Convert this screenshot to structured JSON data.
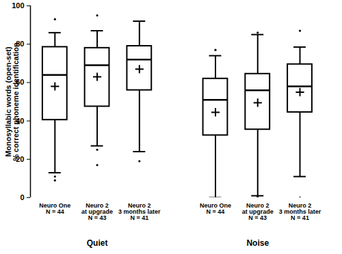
{
  "chart_data": {
    "type": "boxplot",
    "y_label": "Monosyllabic words (open-set)\n% correct phoneme identification",
    "categories": [
      "Neuro One\nN = 44",
      "Neuro 2\nat upgrade\nN = 43",
      "Neuro 2\n3 months later\nN = 41",
      "Neuro One\nN = 44",
      "Neuro 2\nat upgrade\nN = 43",
      "Neuro 2\n3 months later\nN = 41"
    ],
    "groups": [
      "Quiet",
      "Quiet",
      "Quiet",
      "Noise",
      "Noise",
      "Noise"
    ],
    "whisker_low": [
      13,
      27,
      24,
      0,
      1,
      11
    ],
    "q1": [
      40.5,
      47.5,
      56,
      32.5,
      35.5,
      44.5
    ],
    "median": [
      64,
      69,
      72,
      51,
      56,
      58
    ],
    "q3": [
      78.5,
      78,
      79,
      62,
      64.5,
      69.5
    ],
    "whisker_high": [
      86,
      87,
      92,
      74,
      85,
      78.5
    ],
    "mean": [
      58,
      63,
      67,
      44.5,
      49.5,
      55
    ],
    "outliers": [
      [
        93,
        11,
        9
      ],
      [
        95,
        25,
        17
      ],
      [
        19
      ],
      [
        77
      ],
      [
        86,
        0.5
      ],
      [
        87,
        0
      ]
    ],
    "color": "#000000",
    "ylim": [
      0,
      100
    ],
    "yticks": [
      0,
      20,
      40,
      60,
      80,
      100
    ],
    "grid": false
  }
}
